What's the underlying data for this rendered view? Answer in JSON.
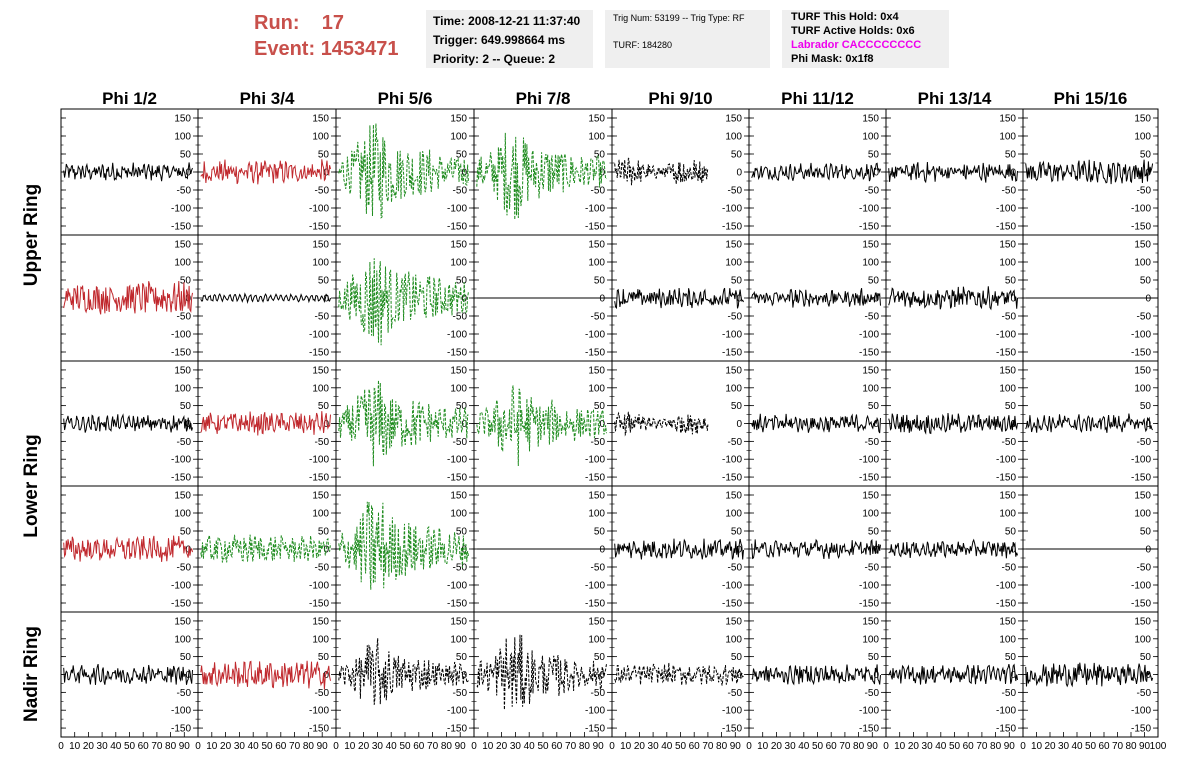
{
  "header": {
    "run_label": "Run:",
    "run_value": "17",
    "event_label": "Event:",
    "event_value": "1453471",
    "time": "Time: 2008-12-21 11:37:40",
    "trigger": "Trigger: 649.998664 ms",
    "priority": "Priority: 2 -- Queue: 2",
    "trig_num": "Trig Num: 53199 -- Trig Type: RF",
    "turf": "TURF: 184280",
    "turf_hold": "TURF This Hold: 0x4",
    "turf_active": "TURF Active Holds: 0x6",
    "labrador": "Labrador CACCCCCCCC",
    "phi_mask": "Phi Mask: 0x1f8"
  },
  "colors": {
    "header_red": "#c8504b",
    "trace_black": "#000000",
    "trace_red": "#c0282d",
    "trace_green": "#1f8c1f",
    "magenta": "#ee00ee",
    "info_box_bg": "#efefef"
  },
  "chart_data": {
    "type": "line",
    "columns": [
      "Phi 1/2",
      "Phi 3/4",
      "Phi 5/6",
      "Phi 7/8",
      "Phi 9/10",
      "Phi 11/12",
      "Phi 13/14",
      "Phi 15/16"
    ],
    "row_labels": [
      "Upper Ring",
      "Lower Ring",
      "Nadir Ring"
    ],
    "ylim": [
      -175,
      175
    ],
    "xlim": [
      0,
      100
    ],
    "y_ticks": [
      -150,
      -100,
      -50,
      0,
      50,
      100,
      150
    ],
    "x_ticks": [
      0,
      10,
      20,
      30,
      40,
      50,
      60,
      70,
      80,
      90,
      100
    ],
    "x_tick_labels": [
      "0",
      "10",
      "20",
      "30",
      "40",
      "50",
      "60",
      "70",
      "80",
      "90",
      "100"
    ],
    "rows": [
      [
        {
          "style": "black",
          "amp": 20,
          "mode": "noise"
        },
        {
          "style": "red",
          "amp": 28,
          "mode": "noise"
        },
        {
          "style": "green",
          "amp": 120,
          "mode": "pulse"
        },
        {
          "style": "green",
          "amp": 110,
          "mode": "pulse"
        },
        {
          "style": "black-dashed",
          "amp": 30,
          "mode": "burst"
        },
        {
          "style": "black",
          "amp": 18,
          "mode": "noise"
        },
        {
          "style": "black",
          "amp": 22,
          "mode": "noise"
        },
        {
          "style": "black",
          "amp": 28,
          "mode": "noise"
        }
      ],
      [
        {
          "style": "red",
          "amp": 40,
          "mode": "noise"
        },
        {
          "style": "black",
          "amp": 4,
          "mode": "noise"
        },
        {
          "style": "green",
          "amp": 120,
          "mode": "pulse"
        },
        {
          "style": "black",
          "amp": 0,
          "mode": "flat"
        },
        {
          "style": "black",
          "amp": 22,
          "mode": "noise"
        },
        {
          "style": "black",
          "amp": 20,
          "mode": "noise"
        },
        {
          "style": "black",
          "amp": 25,
          "mode": "noise"
        },
        {
          "style": "black",
          "amp": 0,
          "mode": "flat"
        }
      ],
      [
        {
          "style": "black",
          "amp": 18,
          "mode": "noise"
        },
        {
          "style": "red",
          "amp": 28,
          "mode": "noise"
        },
        {
          "style": "green",
          "amp": 110,
          "mode": "pulse"
        },
        {
          "style": "green",
          "amp": 100,
          "mode": "pulse"
        },
        {
          "style": "black-dashed",
          "amp": 22,
          "mode": "burst"
        },
        {
          "style": "black",
          "amp": 20,
          "mode": "noise"
        },
        {
          "style": "black",
          "amp": 22,
          "mode": "noise"
        },
        {
          "style": "black",
          "amp": 20,
          "mode": "noise"
        }
      ],
      [
        {
          "style": "red",
          "amp": 30,
          "mode": "noise"
        },
        {
          "style": "green",
          "amp": 35,
          "mode": "noise"
        },
        {
          "style": "green",
          "amp": 125,
          "mode": "pulse"
        },
        {
          "style": "black",
          "amp": 0,
          "mode": "flat"
        },
        {
          "style": "black",
          "amp": 22,
          "mode": "noise"
        },
        {
          "style": "black",
          "amp": 20,
          "mode": "noise"
        },
        {
          "style": "black",
          "amp": 18,
          "mode": "noise"
        },
        {
          "style": "black",
          "amp": 0,
          "mode": "flat"
        }
      ],
      [
        {
          "style": "black",
          "amp": 22,
          "mode": "noise"
        },
        {
          "style": "red",
          "amp": 35,
          "mode": "noise"
        },
        {
          "style": "black-dashed",
          "amp": 80,
          "mode": "pulse"
        },
        {
          "style": "black-dashed",
          "amp": 100,
          "mode": "pulse"
        },
        {
          "style": "black-dashed",
          "amp": 25,
          "mode": "noise"
        },
        {
          "style": "black",
          "amp": 22,
          "mode": "noise"
        },
        {
          "style": "black",
          "amp": 22,
          "mode": "noise"
        },
        {
          "style": "black",
          "amp": 28,
          "mode": "noise"
        }
      ]
    ]
  }
}
